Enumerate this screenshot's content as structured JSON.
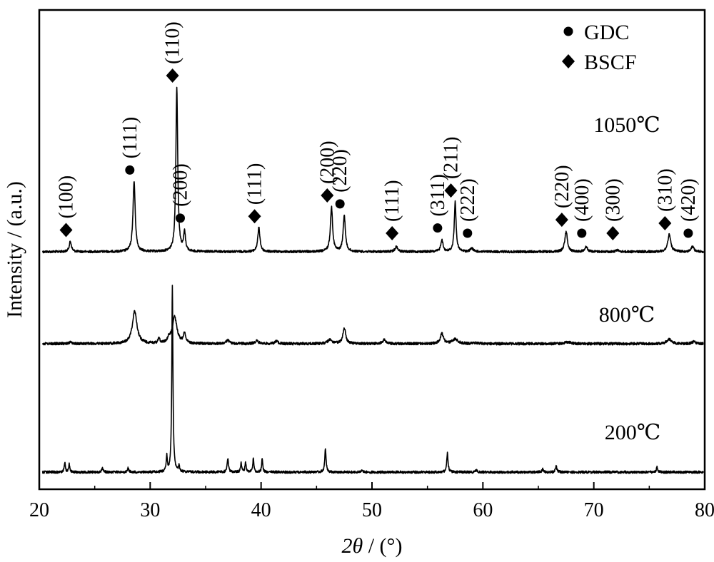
{
  "chart_data": {
    "type": "line",
    "xlabel_italic": "2θ",
    "xlabel_rest": " / (°)",
    "ylabel": "Intensity / (a.u.)",
    "xlim": [
      20,
      80
    ],
    "xticks": [
      "20",
      "30",
      "40",
      "50",
      "60",
      "70",
      "80"
    ],
    "legend": {
      "position": "top-right",
      "items": [
        {
          "label": "GDC",
          "marker": "circle"
        },
        {
          "label": "BSCF",
          "marker": "diamond"
        }
      ]
    },
    "series": [
      {
        "name": "1050℃",
        "peaks": [
          {
            "x": 22.8,
            "h": 0.06,
            "w": 0.12
          },
          {
            "x": 28.55,
            "h": 0.41,
            "w": 0.12
          },
          {
            "x": 32.4,
            "h": 0.96,
            "w": 0.1
          },
          {
            "x": 33.1,
            "h": 0.11,
            "w": 0.1
          },
          {
            "x": 39.8,
            "h": 0.14,
            "w": 0.12
          },
          {
            "x": 46.35,
            "h": 0.26,
            "w": 0.12
          },
          {
            "x": 47.5,
            "h": 0.21,
            "w": 0.12
          },
          {
            "x": 52.2,
            "h": 0.03,
            "w": 0.15
          },
          {
            "x": 56.3,
            "h": 0.07,
            "w": 0.12
          },
          {
            "x": 57.5,
            "h": 0.29,
            "w": 0.1
          },
          {
            "x": 59.0,
            "h": 0.02,
            "w": 0.15
          },
          {
            "x": 67.5,
            "h": 0.12,
            "w": 0.14
          },
          {
            "x": 69.3,
            "h": 0.03,
            "w": 0.15
          },
          {
            "x": 72.1,
            "h": 0.01,
            "w": 0.15
          },
          {
            "x": 76.8,
            "h": 0.1,
            "w": 0.16
          },
          {
            "x": 78.9,
            "h": 0.03,
            "w": 0.15
          }
        ]
      },
      {
        "name": "800℃",
        "peaks": [
          {
            "x": 22.8,
            "h": 0.015,
            "w": 0.2
          },
          {
            "x": 28.6,
            "h": 0.35,
            "w": 0.25
          },
          {
            "x": 30.8,
            "h": 0.05,
            "w": 0.1
          },
          {
            "x": 31.7,
            "h": 0.04,
            "w": 0.15
          },
          {
            "x": 32.2,
            "h": 0.29,
            "w": 0.25
          },
          {
            "x": 33.1,
            "h": 0.11,
            "w": 0.12
          },
          {
            "x": 37.0,
            "h": 0.04,
            "w": 0.15
          },
          {
            "x": 39.6,
            "h": 0.03,
            "w": 0.2
          },
          {
            "x": 41.4,
            "h": 0.03,
            "w": 0.15
          },
          {
            "x": 46.2,
            "h": 0.04,
            "w": 0.25
          },
          {
            "x": 47.5,
            "h": 0.17,
            "w": 0.15
          },
          {
            "x": 51.1,
            "h": 0.04,
            "w": 0.2
          },
          {
            "x": 56.3,
            "h": 0.11,
            "w": 0.17
          },
          {
            "x": 57.5,
            "h": 0.05,
            "w": 0.3
          },
          {
            "x": 59.3,
            "h": 0.01,
            "w": 0.2
          },
          {
            "x": 67.7,
            "h": 0.02,
            "w": 0.3
          },
          {
            "x": 76.8,
            "h": 0.05,
            "w": 0.25
          },
          {
            "x": 79.0,
            "h": 0.02,
            "w": 0.2
          }
        ]
      },
      {
        "name": "200℃",
        "peaks": [
          {
            "x": 22.3,
            "h": 0.05,
            "w": 0.06
          },
          {
            "x": 22.7,
            "h": 0.04,
            "w": 0.06
          },
          {
            "x": 25.7,
            "h": 0.02,
            "w": 0.08
          },
          {
            "x": 28.0,
            "h": 0.02,
            "w": 0.08
          },
          {
            "x": 31.5,
            "h": 0.08,
            "w": 0.06
          },
          {
            "x": 32.0,
            "h": 0.97,
            "w": 0.06
          },
          {
            "x": 32.6,
            "h": 0.03,
            "w": 0.06
          },
          {
            "x": 37.0,
            "h": 0.07,
            "w": 0.07
          },
          {
            "x": 38.2,
            "h": 0.05,
            "w": 0.06
          },
          {
            "x": 38.6,
            "h": 0.05,
            "w": 0.06
          },
          {
            "x": 39.3,
            "h": 0.07,
            "w": 0.06
          },
          {
            "x": 40.1,
            "h": 0.07,
            "w": 0.06
          },
          {
            "x": 45.8,
            "h": 0.12,
            "w": 0.07
          },
          {
            "x": 49.1,
            "h": 0.01,
            "w": 0.08
          },
          {
            "x": 56.8,
            "h": 0.1,
            "w": 0.07
          },
          {
            "x": 59.4,
            "h": 0.01,
            "w": 0.08
          },
          {
            "x": 65.4,
            "h": 0.015,
            "w": 0.08
          },
          {
            "x": 66.6,
            "h": 0.035,
            "w": 0.07
          },
          {
            "x": 75.7,
            "h": 0.025,
            "w": 0.07
          }
        ]
      }
    ],
    "annotations": [
      {
        "series": 0,
        "x": 22.8,
        "marker": "diamond",
        "label": "(100)"
      },
      {
        "series": 0,
        "x": 28.55,
        "marker": "circle",
        "label": "(111)"
      },
      {
        "series": 0,
        "x": 32.4,
        "marker": "diamond",
        "label": "(110)"
      },
      {
        "series": 0,
        "x": 33.1,
        "marker": "circle",
        "label": "(200)"
      },
      {
        "series": 0,
        "x": 39.8,
        "marker": "diamond",
        "label": "(111)"
      },
      {
        "series": 0,
        "x": 46.35,
        "marker": "diamond",
        "label": "(200)"
      },
      {
        "series": 0,
        "x": 47.5,
        "marker": "circle",
        "label": "(220)"
      },
      {
        "series": 0,
        "x": 52.2,
        "marker": "diamond",
        "label": "(111)"
      },
      {
        "series": 0,
        "x": 56.3,
        "marker": "circle",
        "label": "(311)"
      },
      {
        "series": 0,
        "x": 57.5,
        "marker": "diamond",
        "label": "(211)"
      },
      {
        "series": 0,
        "x": 59.0,
        "marker": "circle",
        "label": "(222)"
      },
      {
        "series": 0,
        "x": 67.5,
        "marker": "diamond",
        "label": "(220)"
      },
      {
        "series": 0,
        "x": 69.3,
        "marker": "circle",
        "label": "(400)"
      },
      {
        "series": 0,
        "x": 72.1,
        "marker": "diamond",
        "label": "(300)"
      },
      {
        "series": 0,
        "x": 76.8,
        "marker": "diamond",
        "label": "(310)"
      },
      {
        "series": 0,
        "x": 78.9,
        "marker": "circle",
        "label": "(420)"
      }
    ],
    "grid": false,
    "line_color": "#000000"
  }
}
